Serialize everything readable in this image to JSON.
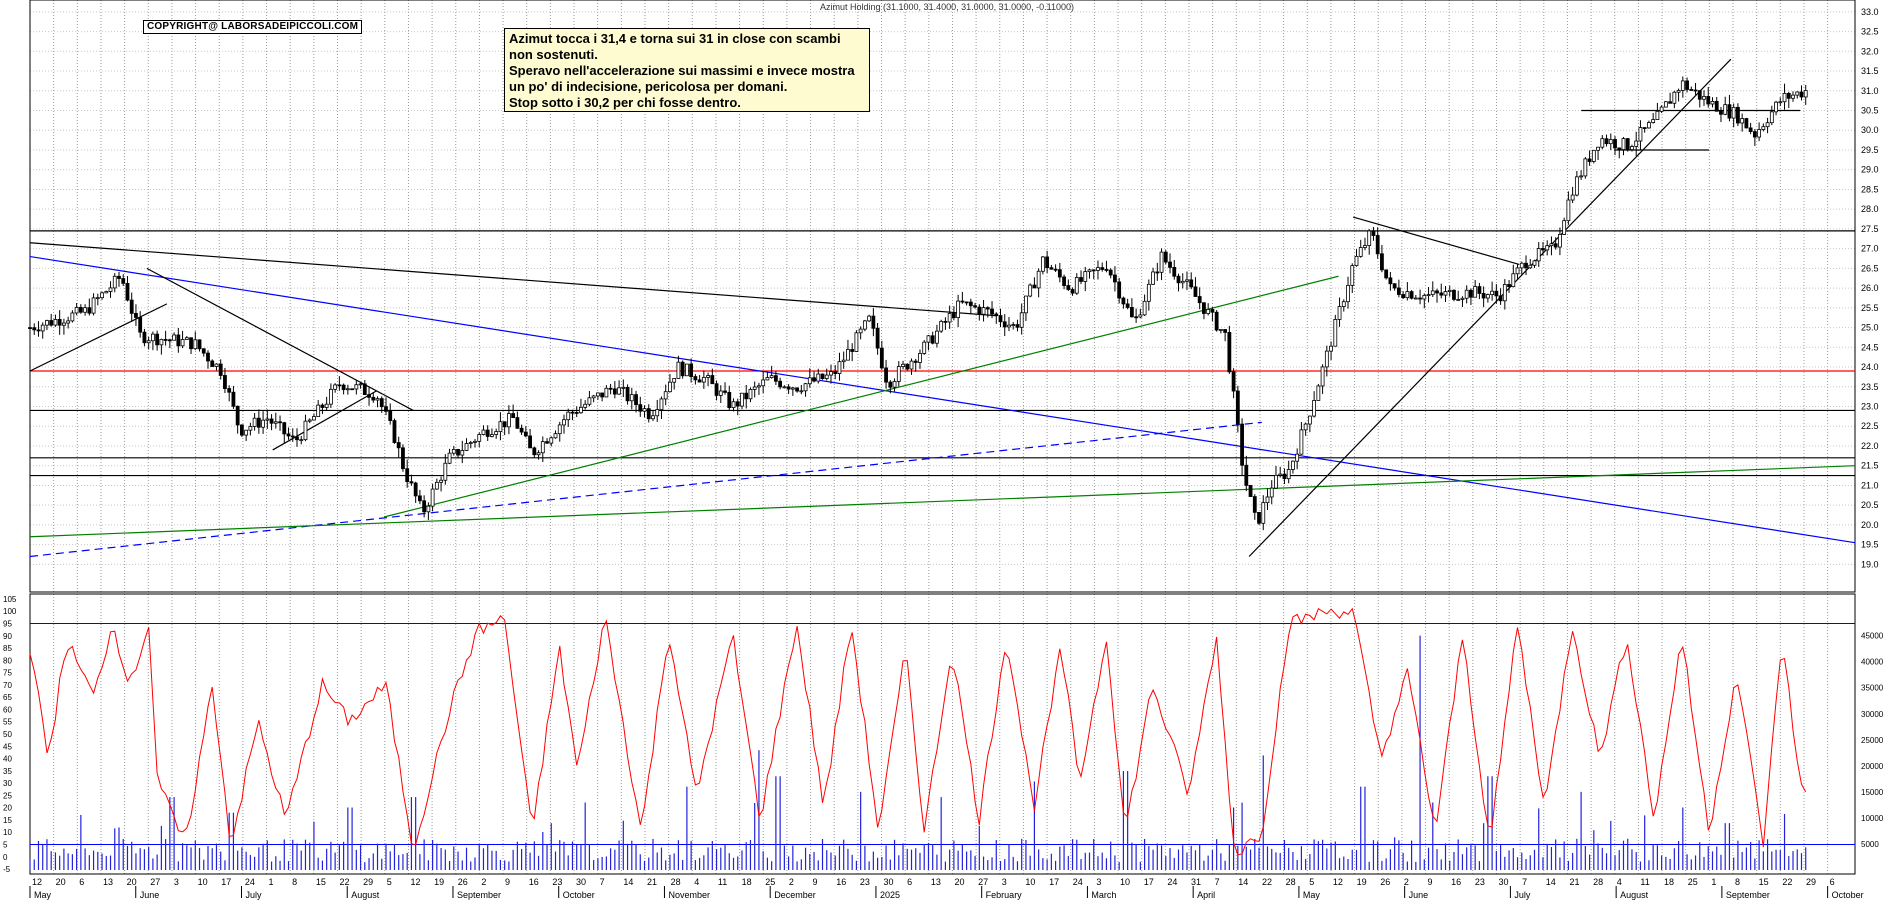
{
  "title": "Azimut Holding (31.1000, 31.4000, 31.0000, 31.0000, -0.11000)",
  "copyright": "COPYRIGHT@ LABORSADEIPICCOLI.COM",
  "note": {
    "lines": [
      "Azimut tocca i 31,4 e torna sui 31 in close con scambi",
      "non sostenuti.",
      "Speravo nell'accelerazione sui massimi e invece mostra",
      "un po' di indecisione, pericolosa per domani.",
      "Stop sotto i 30,2 per chi fosse dentro."
    ]
  },
  "chart_data": {
    "type": "candlestick",
    "price_axis": {
      "ticks": [
        "33.0",
        "32.5",
        "32.0",
        "31.5",
        "31.0",
        "30.5",
        "30.0",
        "29.5",
        "29.0",
        "28.5",
        "28.0",
        "27.5",
        "27.0",
        "26.5",
        "26.0",
        "25.5",
        "25.0",
        "24.5",
        "24.0",
        "23.5",
        "23.0",
        "22.5",
        "22.0",
        "21.5",
        "21.0",
        "20.5",
        "20.0",
        "19.5",
        "19.0"
      ],
      "range": [
        18.3,
        33.3
      ]
    },
    "oscillator_axis": {
      "ticks": [
        "105",
        "100",
        "95",
        "90",
        "85",
        "80",
        "75",
        "70",
        "65",
        "60",
        "55",
        "50",
        "45",
        "40",
        "35",
        "30",
        "25",
        "20",
        "15",
        "10",
        "5",
        "0",
        "-5"
      ],
      "range": [
        -7,
        107
      ],
      "levels": [
        95,
        5
      ]
    },
    "volume_axis": {
      "ticks": [
        "45000",
        "40000",
        "35000",
        "30000",
        "25000",
        "20000",
        "15000",
        "10000",
        "5000"
      ],
      "range": [
        0,
        48000
      ]
    },
    "x_day_labels": [
      "12",
      "20",
      "6",
      "13",
      "20",
      "27",
      "3",
      "10",
      "17",
      "24",
      "1",
      "8",
      "15",
      "22",
      "29",
      "5",
      "12",
      "19",
      "26",
      "2",
      "9",
      "16",
      "23",
      "30",
      "7",
      "14",
      "21",
      "28",
      "4",
      "11",
      "18",
      "25",
      "2",
      "9",
      "16",
      "23",
      "30",
      "6",
      "13",
      "20",
      "27",
      "3",
      "10",
      "17",
      "24",
      "3",
      "10",
      "17",
      "24",
      "31",
      "7",
      "14",
      "22",
      "28",
      "5",
      "12",
      "19",
      "26",
      "2",
      "9",
      "16",
      "23",
      "30",
      "7",
      "14",
      "21",
      "28",
      "4",
      "11",
      "18",
      "25",
      "1",
      "8",
      "15",
      "22",
      "29",
      "6"
    ],
    "month_labels": [
      "May",
      "June",
      "July",
      "August",
      "September",
      "October",
      "November",
      "December",
      "2025",
      "February",
      "March",
      "April",
      "May",
      "June",
      "July",
      "August",
      "September",
      "October"
    ],
    "horizontal_levels": [
      {
        "value": 27.45,
        "color": "#000000"
      },
      {
        "value": 23.9,
        "color": "#ff0000"
      },
      {
        "value": 22.9,
        "color": "#000000"
      },
      {
        "value": 21.7,
        "color": "#000000"
      },
      {
        "value": 21.25,
        "color": "#000000"
      }
    ],
    "trendlines": [
      {
        "from": [
          0.0,
          27.15
        ],
        "to": [
          0.53,
          25.3
        ],
        "color": "#000000",
        "dashed": false
      },
      {
        "from": [
          0.0,
          26.8
        ],
        "to": [
          1.0,
          19.55
        ],
        "color": "#0000ff",
        "dashed": false
      },
      {
        "from": [
          0.0,
          19.2
        ],
        "to": [
          0.675,
          22.6
        ],
        "color": "#0000ff",
        "dashed": true
      },
      {
        "from": [
          0.0,
          19.7
        ],
        "to": [
          1.0,
          21.5
        ],
        "color": "#008000",
        "dashed": false
      },
      {
        "from": [
          0.194,
          20.2
        ],
        "to": [
          0.717,
          26.3
        ],
        "color": "#008000",
        "dashed": false
      },
      {
        "from": [
          0.064,
          26.5
        ],
        "to": [
          0.21,
          22.9
        ],
        "color": "#000000",
        "dashed": false
      },
      {
        "from": [
          0.0,
          23.9
        ],
        "to": [
          0.075,
          25.6
        ],
        "color": "#000000",
        "dashed": false
      },
      {
        "from": [
          0.133,
          21.9
        ],
        "to": [
          0.19,
          23.4
        ],
        "color": "#000000",
        "dashed": false
      },
      {
        "from": [
          0.668,
          19.2
        ],
        "to": [
          0.932,
          31.8
        ],
        "color": "#000000",
        "dashed": false
      },
      {
        "from": [
          0.725,
          27.8
        ],
        "to": [
          0.816,
          26.6
        ],
        "color": "#000000",
        "dashed": false
      },
      {
        "from": [
          0.85,
          30.5
        ],
        "to": [
          0.97,
          30.5
        ],
        "color": "#000000",
        "dashed": false
      },
      {
        "from": [
          0.868,
          29.5
        ],
        "to": [
          0.92,
          29.5
        ],
        "color": "#000000",
        "dashed": false
      }
    ],
    "price_path": [
      [
        0.0,
        25.0
      ],
      [
        0.03,
        25.4
      ],
      [
        0.05,
        26.3
      ],
      [
        0.06,
        24.8
      ],
      [
        0.09,
        24.6
      ],
      [
        0.105,
        23.9
      ],
      [
        0.115,
        22.4
      ],
      [
        0.13,
        22.7
      ],
      [
        0.145,
        22.1
      ],
      [
        0.17,
        23.6
      ],
      [
        0.19,
        23.3
      ],
      [
        0.2,
        22.2
      ],
      [
        0.205,
        21.4
      ],
      [
        0.215,
        20.3
      ],
      [
        0.23,
        21.7
      ],
      [
        0.25,
        22.4
      ],
      [
        0.265,
        22.7
      ],
      [
        0.275,
        21.8
      ],
      [
        0.295,
        22.8
      ],
      [
        0.32,
        23.5
      ],
      [
        0.34,
        22.8
      ],
      [
        0.355,
        24.0
      ],
      [
        0.37,
        23.7
      ],
      [
        0.385,
        23.0
      ],
      [
        0.405,
        23.7
      ],
      [
        0.42,
        23.5
      ],
      [
        0.44,
        23.8
      ],
      [
        0.46,
        25.2
      ],
      [
        0.47,
        23.6
      ],
      [
        0.49,
        24.5
      ],
      [
        0.51,
        25.6
      ],
      [
        0.525,
        25.4
      ],
      [
        0.54,
        25.0
      ],
      [
        0.555,
        26.7
      ],
      [
        0.57,
        26.0
      ],
      [
        0.59,
        26.6
      ],
      [
        0.605,
        25.1
      ],
      [
        0.62,
        26.8
      ],
      [
        0.635,
        26.0
      ],
      [
        0.655,
        24.8
      ],
      [
        0.665,
        21.3
      ],
      [
        0.672,
        20.0
      ],
      [
        0.68,
        21.0
      ],
      [
        0.69,
        21.4
      ],
      [
        0.7,
        22.7
      ],
      [
        0.71,
        24.2
      ],
      [
        0.725,
        26.6
      ],
      [
        0.735,
        27.4
      ],
      [
        0.745,
        26.0
      ],
      [
        0.765,
        25.8
      ],
      [
        0.79,
        25.9
      ],
      [
        0.805,
        25.8
      ],
      [
        0.82,
        26.7
      ],
      [
        0.835,
        27.0
      ],
      [
        0.845,
        28.5
      ],
      [
        0.86,
        29.8
      ],
      [
        0.875,
        29.6
      ],
      [
        0.89,
        30.2
      ],
      [
        0.905,
        31.2
      ],
      [
        0.92,
        30.7
      ],
      [
        0.935,
        30.4
      ],
      [
        0.945,
        29.9
      ],
      [
        0.96,
        30.8
      ],
      [
        0.973,
        31.0
      ]
    ],
    "oscillator_path": [
      [
        0.0,
        85
      ],
      [
        0.01,
        40
      ],
      [
        0.02,
        88
      ],
      [
        0.035,
        65
      ],
      [
        0.045,
        95
      ],
      [
        0.055,
        70
      ],
      [
        0.065,
        95
      ],
      [
        0.07,
        30
      ],
      [
        0.085,
        5
      ],
      [
        0.1,
        70
      ],
      [
        0.11,
        5
      ],
      [
        0.125,
        55
      ],
      [
        0.14,
        15
      ],
      [
        0.16,
        70
      ],
      [
        0.175,
        55
      ],
      [
        0.195,
        70
      ],
      [
        0.21,
        3
      ],
      [
        0.23,
        60
      ],
      [
        0.245,
        92
      ],
      [
        0.26,
        97
      ],
      [
        0.275,
        10
      ],
      [
        0.29,
        85
      ],
      [
        0.3,
        35
      ],
      [
        0.315,
        98
      ],
      [
        0.335,
        10
      ],
      [
        0.35,
        92
      ],
      [
        0.365,
        25
      ],
      [
        0.385,
        90
      ],
      [
        0.4,
        15
      ],
      [
        0.42,
        95
      ],
      [
        0.435,
        20
      ],
      [
        0.45,
        95
      ],
      [
        0.465,
        10
      ],
      [
        0.48,
        85
      ],
      [
        0.49,
        10
      ],
      [
        0.505,
        85
      ],
      [
        0.52,
        15
      ],
      [
        0.535,
        90
      ],
      [
        0.55,
        20
      ],
      [
        0.565,
        85
      ],
      [
        0.575,
        30
      ],
      [
        0.59,
        90
      ],
      [
        0.6,
        10
      ],
      [
        0.615,
        70
      ],
      [
        0.635,
        25
      ],
      [
        0.65,
        90
      ],
      [
        0.66,
        1
      ],
      [
        0.675,
        10
      ],
      [
        0.69,
        95
      ],
      [
        0.71,
        100
      ],
      [
        0.725,
        100
      ],
      [
        0.74,
        40
      ],
      [
        0.755,
        75
      ],
      [
        0.77,
        10
      ],
      [
        0.785,
        90
      ],
      [
        0.8,
        5
      ],
      [
        0.815,
        95
      ],
      [
        0.83,
        20
      ],
      [
        0.845,
        95
      ],
      [
        0.86,
        40
      ],
      [
        0.875,
        90
      ],
      [
        0.89,
        15
      ],
      [
        0.905,
        90
      ],
      [
        0.92,
        10
      ],
      [
        0.935,
        75
      ],
      [
        0.95,
        5
      ],
      [
        0.96,
        90
      ],
      [
        0.968,
        40
      ],
      [
        0.973,
        25
      ]
    ],
    "volume_samples": [
      5,
      38,
      71,
      104,
      137,
      170,
      203,
      236,
      269,
      302,
      335,
      368,
      401,
      434,
      467,
      500
    ],
    "volume_peaks": [
      [
        0.047,
        8000
      ],
      [
        0.078,
        14000
      ],
      [
        0.11,
        11000
      ],
      [
        0.175,
        12000
      ],
      [
        0.21,
        14000
      ],
      [
        0.285,
        9000
      ],
      [
        0.36,
        16000
      ],
      [
        0.4,
        23000
      ],
      [
        0.41,
        18000
      ],
      [
        0.455,
        15000
      ],
      [
        0.5,
        14000
      ],
      [
        0.55,
        17000
      ],
      [
        0.6,
        19000
      ],
      [
        0.66,
        12000
      ],
      [
        0.675,
        22000
      ],
      [
        0.73,
        16000
      ],
      [
        0.762,
        45000
      ],
      [
        0.8,
        18000
      ],
      [
        0.85,
        15000
      ],
      [
        0.905,
        12000
      ],
      [
        0.93,
        9000
      ]
    ],
    "price_grid_major": true,
    "vertical_grid": "dotted"
  }
}
